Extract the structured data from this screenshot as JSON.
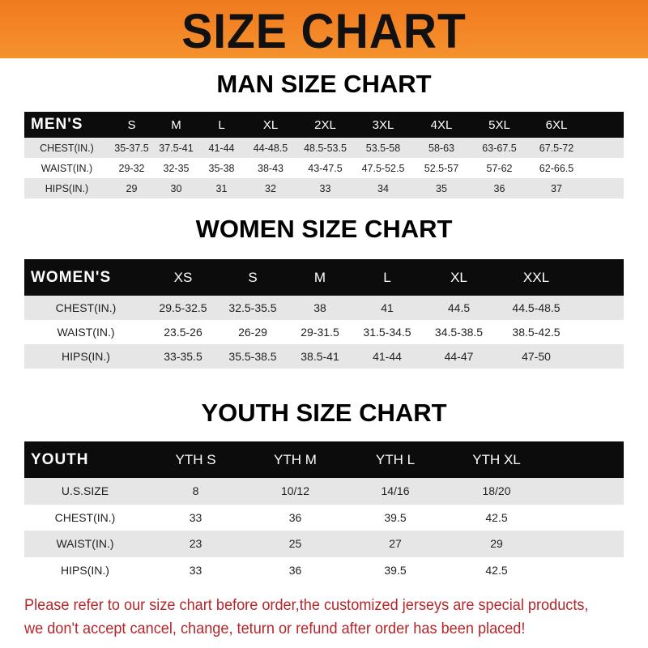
{
  "banner": {
    "title": "SIZE CHART",
    "color": "#f07a1e"
  },
  "men": {
    "title": "MAN SIZE CHART",
    "header": [
      "MEN'S",
      "S",
      "M",
      "L",
      "XL",
      "2XL",
      "3XL",
      "4XL",
      "5XL",
      "6XL"
    ],
    "rows": [
      [
        "CHEST(IN.)",
        "35-37.5",
        "37.5-41",
        "41-44",
        "44-48.5",
        "48.5-53.5",
        "53.5-58",
        "58-63",
        "63-67.5",
        "67.5-72"
      ],
      [
        "WAIST(IN.)",
        "29-32",
        "32-35",
        "35-38",
        "38-43",
        "43-47.5",
        "47.5-52.5",
        "52.5-57",
        "57-62",
        "62-66.5"
      ],
      [
        "HIPS(IN.)",
        "29",
        "30",
        "31",
        "32",
        "33",
        "34",
        "35",
        "36",
        "37"
      ]
    ]
  },
  "women": {
    "title": "WOMEN SIZE CHART",
    "header": [
      "WOMEN'S",
      "XS",
      "S",
      "M",
      "L",
      "XL",
      "XXL"
    ],
    "rows": [
      [
        "CHEST(IN.)",
        "29.5-32.5",
        "32.5-35.5",
        "38",
        "41",
        "44.5",
        "44.5-48.5"
      ],
      [
        "WAIST(IN.)",
        "23.5-26",
        "26-29",
        "29-31.5",
        "31.5-34.5",
        "34.5-38.5",
        "38.5-42.5"
      ],
      [
        "HIPS(IN.)",
        "33-35.5",
        "35.5-38.5",
        "38.5-41",
        "41-44",
        "44-47",
        "47-50"
      ]
    ]
  },
  "youth": {
    "title": "YOUTH SIZE CHART",
    "header": [
      "YOUTH",
      "YTH S",
      "YTH M",
      "YTH L",
      "YTH XL"
    ],
    "rows": [
      [
        "U.S.SIZE",
        "8",
        "10/12",
        "14/16",
        "18/20"
      ],
      [
        "CHEST(IN.)",
        "33",
        "36",
        "39.5",
        "42.5"
      ],
      [
        "WAIST(IN.)",
        "23",
        "25",
        "27",
        "29"
      ],
      [
        "HIPS(IN.)",
        "33",
        "36",
        "39.5",
        "42.5"
      ]
    ]
  },
  "notice": {
    "line1": "Please refer to our size chart before order,the customized jerseys are special products,",
    "line2": "we don't accept cancel, change, teturn or refund after order has been placed!",
    "color": "#b5262a"
  }
}
